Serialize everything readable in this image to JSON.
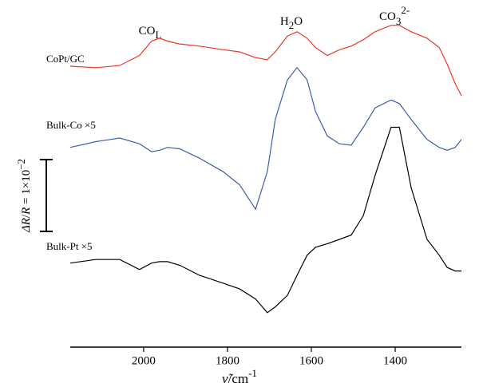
{
  "chart_data": {
    "type": "line",
    "xlabel": [
      "ν̃",
      "/cm",
      "-1"
    ],
    "xlim": [
      2175,
      1242
    ],
    "xticks": [
      2000,
      1800,
      1600,
      1400
    ],
    "ylim": [
      0,
      4.61
    ],
    "annotations": [
      [
        "CO",
        "L"
      ],
      [
        "H",
        "2",
        "O"
      ],
      [
        "CO",
        "3",
        "2-"
      ]
    ],
    "scale_bar": {
      "value": 1,
      "label": [
        "ΔR",
        "/",
        "R",
        " = 1×10",
        "−2"
      ]
    },
    "x": [
      2175,
      2114,
      2057,
      2010,
      1981,
      1962,
      1943,
      1914,
      1867,
      1810,
      1771,
      1733,
      1705,
      1686,
      1657,
      1634,
      1610,
      1590,
      1562,
      1533,
      1505,
      1476,
      1448,
      1410,
      1390,
      1362,
      1324,
      1295,
      1276,
      1257,
      1242
    ],
    "series": [
      {
        "name": "CoPt/GC",
        "color": "#e8372a",
        "values": [
          3.91,
          3.89,
          3.92,
          4.06,
          4.26,
          4.3,
          4.26,
          4.22,
          4.19,
          4.14,
          4.11,
          4.03,
          4.0,
          4.11,
          4.33,
          4.39,
          4.3,
          4.17,
          4.06,
          4.14,
          4.19,
          4.28,
          4.39,
          4.48,
          4.48,
          4.39,
          4.3,
          4.17,
          3.94,
          3.67,
          3.5
        ]
      },
      {
        "name": "Bulk-Co ×5",
        "color": "#3a5ea8",
        "values": [
          2.78,
          2.86,
          2.91,
          2.83,
          2.72,
          2.74,
          2.78,
          2.76,
          2.63,
          2.44,
          2.26,
          1.92,
          2.44,
          3.17,
          3.72,
          3.89,
          3.72,
          3.28,
          2.94,
          2.83,
          2.81,
          3.06,
          3.33,
          3.44,
          3.39,
          3.17,
          2.89,
          2.78,
          2.74,
          2.78,
          2.89
        ]
      },
      {
        "name": "Bulk-Pt ×5",
        "color": "#000000",
        "values": [
          1.17,
          1.22,
          1.22,
          1.08,
          1.17,
          1.19,
          1.19,
          1.14,
          1.0,
          0.89,
          0.81,
          0.67,
          0.48,
          0.56,
          0.72,
          1.0,
          1.28,
          1.39,
          1.44,
          1.5,
          1.56,
          1.83,
          2.39,
          3.06,
          3.06,
          2.22,
          1.5,
          1.28,
          1.11,
          1.06,
          1.06
        ]
      }
    ]
  }
}
